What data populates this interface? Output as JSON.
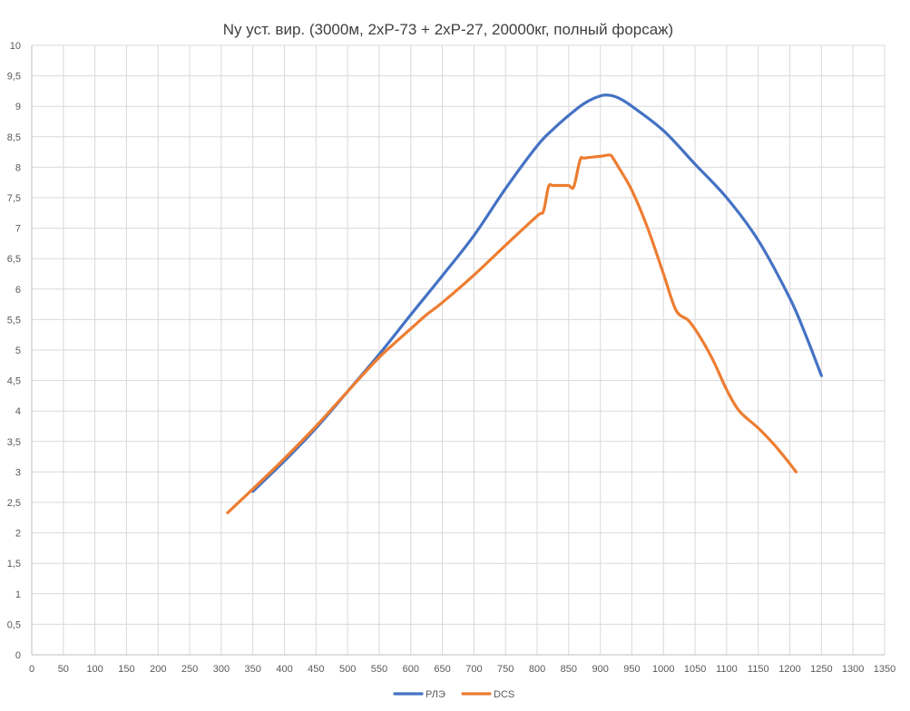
{
  "chart_data": {
    "type": "line",
    "title": "Ny  уст. вир. (3000м, 2хР-73 + 2хР-27, 20000кг, полный форсаж)",
    "xlabel": "",
    "ylabel": "",
    "xlim": [
      0,
      1350
    ],
    "ylim": [
      0,
      10
    ],
    "x_ticks": [
      0,
      50,
      100,
      150,
      200,
      250,
      300,
      350,
      400,
      450,
      500,
      550,
      600,
      650,
      700,
      750,
      800,
      850,
      900,
      950,
      1000,
      1050,
      1100,
      1150,
      1200,
      1250,
      1300,
      1350
    ],
    "y_ticks": [
      {
        "value": 0,
        "label": "0"
      },
      {
        "value": 0.5,
        "label": "0,5"
      },
      {
        "value": 1,
        "label": "1"
      },
      {
        "value": 1.5,
        "label": "1,5"
      },
      {
        "value": 2,
        "label": "2"
      },
      {
        "value": 2.5,
        "label": "2,5"
      },
      {
        "value": 3,
        "label": "3"
      },
      {
        "value": 3.5,
        "label": "3,5"
      },
      {
        "value": 4,
        "label": "4"
      },
      {
        "value": 4.5,
        "label": "4,5"
      },
      {
        "value": 5,
        "label": "5"
      },
      {
        "value": 5.5,
        "label": "5,5"
      },
      {
        "value": 6,
        "label": "6"
      },
      {
        "value": 6.5,
        "label": "6,5"
      },
      {
        "value": 7,
        "label": "7"
      },
      {
        "value": 7.5,
        "label": "7,5"
      },
      {
        "value": 8,
        "label": "8"
      },
      {
        "value": 8.5,
        "label": "8,5"
      },
      {
        "value": 9,
        "label": "9"
      },
      {
        "value": 9.5,
        "label": "9,5"
      },
      {
        "value": 10,
        "label": "10"
      }
    ],
    "grid": true,
    "legend_position": "bottom",
    "series": [
      {
        "name": "РЛЭ",
        "color": "#4472c4",
        "x": [
          350,
          400,
          450,
          500,
          550,
          600,
          650,
          700,
          750,
          800,
          825,
          850,
          875,
          900,
          915,
          930,
          950,
          1000,
          1050,
          1100,
          1150,
          1200,
          1225,
          1250
        ],
        "y": [
          2.68,
          3.18,
          3.72,
          4.32,
          4.93,
          5.58,
          6.22,
          6.88,
          7.65,
          8.35,
          8.62,
          8.85,
          9.05,
          9.17,
          9.18,
          9.13,
          9.0,
          8.6,
          8.05,
          7.5,
          6.8,
          5.85,
          5.25,
          4.58
        ]
      },
      {
        "name": "DCS",
        "color": "#ed7d31",
        "x": [
          310,
          350,
          400,
          450,
          500,
          550,
          600,
          625,
          650,
          700,
          750,
          800,
          810,
          818,
          825,
          840,
          850,
          858,
          868,
          875,
          900,
          915,
          920,
          930,
          950,
          975,
          1000,
          1020,
          1040,
          1060,
          1080,
          1100,
          1120,
          1150,
          1175,
          1195,
          1210
        ],
        "y": [
          2.33,
          2.72,
          3.22,
          3.75,
          4.32,
          4.88,
          5.35,
          5.58,
          5.78,
          6.23,
          6.72,
          7.2,
          7.28,
          7.68,
          7.7,
          7.7,
          7.7,
          7.68,
          8.12,
          8.15,
          8.18,
          8.2,
          8.15,
          7.98,
          7.62,
          7.0,
          6.25,
          5.65,
          5.48,
          5.18,
          4.8,
          4.35,
          4.0,
          3.72,
          3.45,
          3.2,
          3.0
        ]
      }
    ]
  }
}
